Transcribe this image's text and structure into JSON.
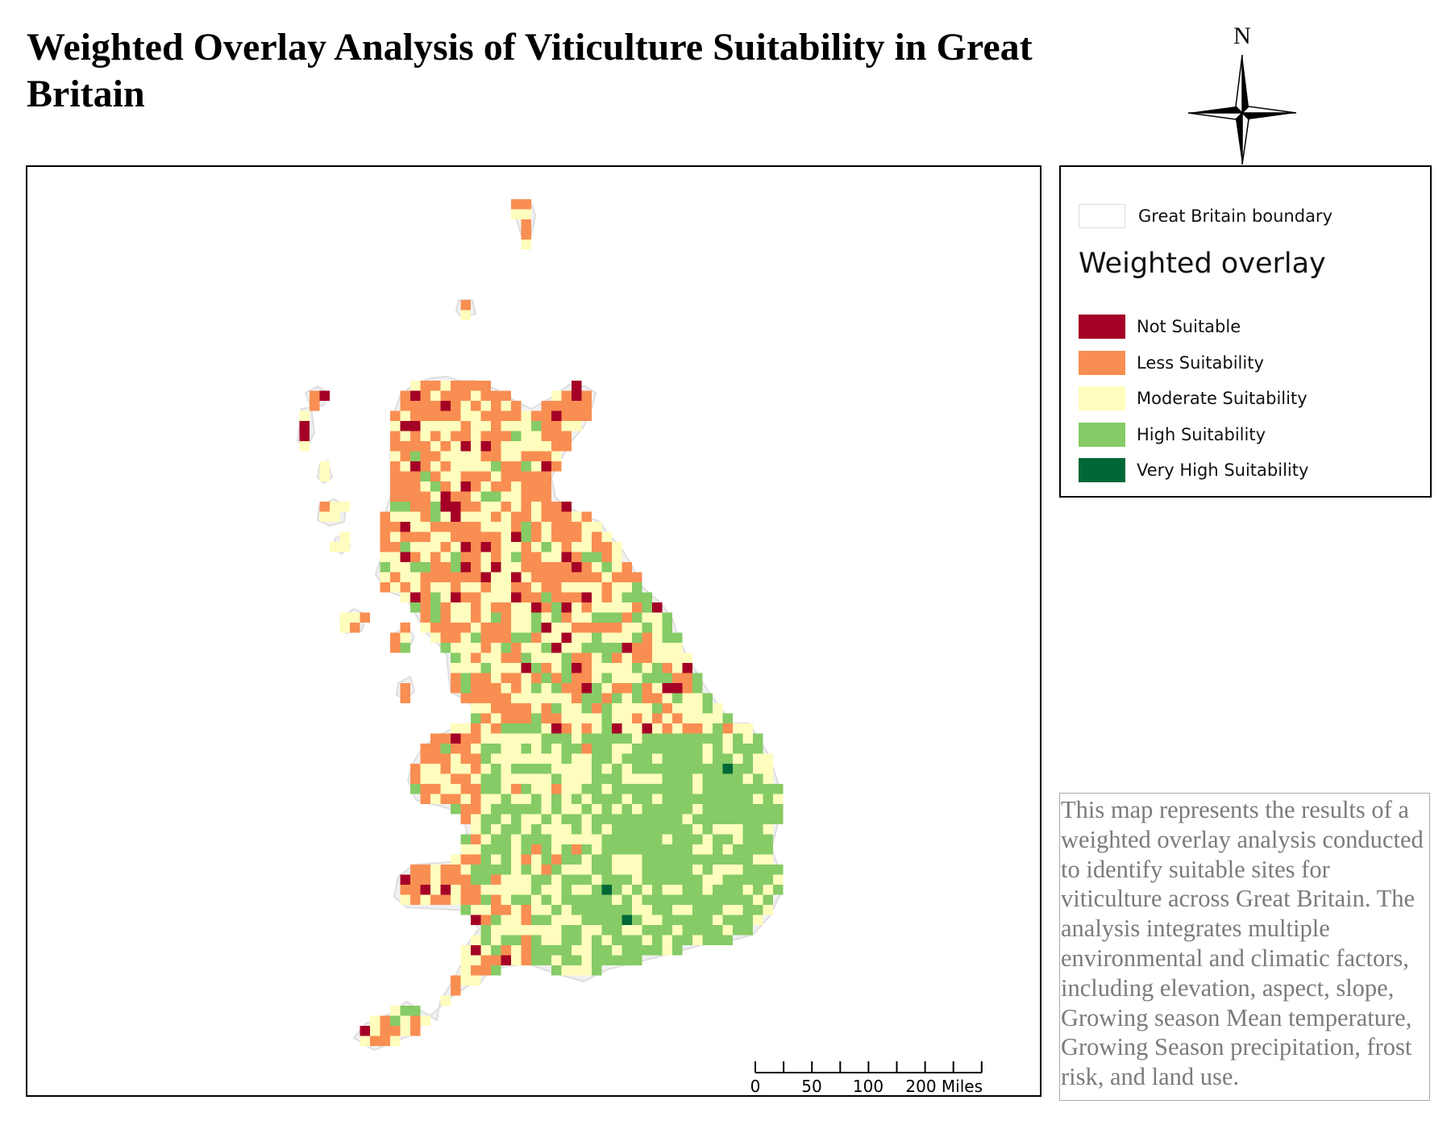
{
  "title": "Weighted Overlay Analysis of Viticulture Suitability in Great Britain",
  "north_arrow": {
    "label": "N",
    "icon": "compass-rose-icon"
  },
  "legend": {
    "boundary_label": "Great Britain boundary",
    "heading": "Weighted overlay",
    "classes": [
      {
        "label": "Not Suitable",
        "color": "#a50026"
      },
      {
        "label": "Less Suitability",
        "color": "#f98e52"
      },
      {
        "label": "Moderate Suitability",
        "color": "#fefdbd"
      },
      {
        "label": "High Suitability",
        "color": "#86cb66"
      },
      {
        "label": "Very High Suitability",
        "color": "#006837"
      }
    ]
  },
  "scale_bar": {
    "ticks": [
      "0",
      "50",
      "100",
      "200 Miles"
    ],
    "tick_values": [
      0,
      50,
      100,
      200
    ]
  },
  "description": "This map represents the results of a weighted overlay analysis conducted to identify suitable sites for viticulture across Great Britain. The analysis integrates multiple environmental and climatic factors, including elevation, aspect, slope, Growing season Mean temperature, Growing Season precipitation, frost risk, and land use."
}
